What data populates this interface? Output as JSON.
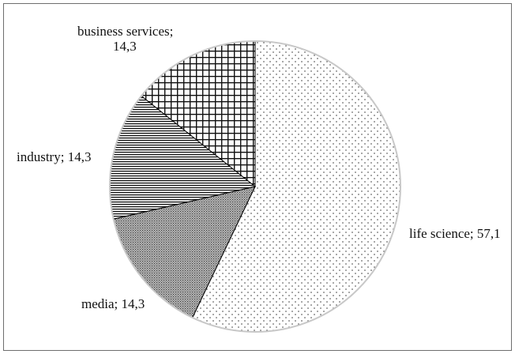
{
  "chart_data": {
    "type": "pie",
    "title": "",
    "slices": [
      {
        "category": "life science",
        "value": 57.1,
        "label": "life science; 57,1",
        "pattern": "dots"
      },
      {
        "category": "media",
        "value": 14.3,
        "label": "media; 14,3",
        "pattern": "dense-dots"
      },
      {
        "category": "industry",
        "value": 14.3,
        "label": "industry; 14,3",
        "pattern": "horizontal-lines"
      },
      {
        "category": "business services",
        "value": 14.3,
        "label_lines": [
          "business services;",
          "14,3"
        ],
        "pattern": "grid"
      }
    ],
    "legend": "none",
    "slice_outline_color": "#000000",
    "pie_edge_color": "#c8c8c8"
  }
}
